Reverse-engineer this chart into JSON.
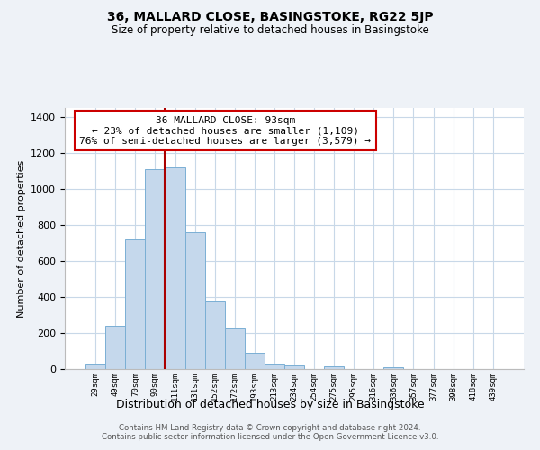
{
  "title": "36, MALLARD CLOSE, BASINGSTOKE, RG22 5JP",
  "subtitle": "Size of property relative to detached houses in Basingstoke",
  "xlabel": "Distribution of detached houses by size in Basingstoke",
  "ylabel": "Number of detached properties",
  "bar_labels": [
    "29sqm",
    "49sqm",
    "70sqm",
    "90sqm",
    "111sqm",
    "131sqm",
    "152sqm",
    "172sqm",
    "193sqm",
    "213sqm",
    "234sqm",
    "254sqm",
    "275sqm",
    "295sqm",
    "316sqm",
    "336sqm",
    "357sqm",
    "377sqm",
    "398sqm",
    "418sqm",
    "439sqm"
  ],
  "bar_values": [
    30,
    240,
    720,
    1110,
    1120,
    760,
    380,
    230,
    90,
    30,
    20,
    0,
    15,
    0,
    0,
    10,
    0,
    0,
    0,
    0,
    0
  ],
  "bar_color": "#c5d8ec",
  "bar_edge_color": "#7aafd4",
  "annotation_title": "36 MALLARD CLOSE: 93sqm",
  "annotation_line1": "← 23% of detached houses are smaller (1,109)",
  "annotation_line2": "76% of semi-detached houses are larger (3,579) →",
  "annotation_box_color": "#ffffff",
  "annotation_border_color": "#cc0000",
  "property_line_color": "#aa0000",
  "property_bin_index": 3,
  "ylim": [
    0,
    1450
  ],
  "yticks": [
    0,
    200,
    400,
    600,
    800,
    1000,
    1200,
    1400
  ],
  "footer_line1": "Contains HM Land Registry data © Crown copyright and database right 2024.",
  "footer_line2": "Contains public sector information licensed under the Open Government Licence v3.0.",
  "bg_color": "#eef2f7",
  "plot_bg_color": "#ffffff",
  "grid_color": "#c8d8e8"
}
